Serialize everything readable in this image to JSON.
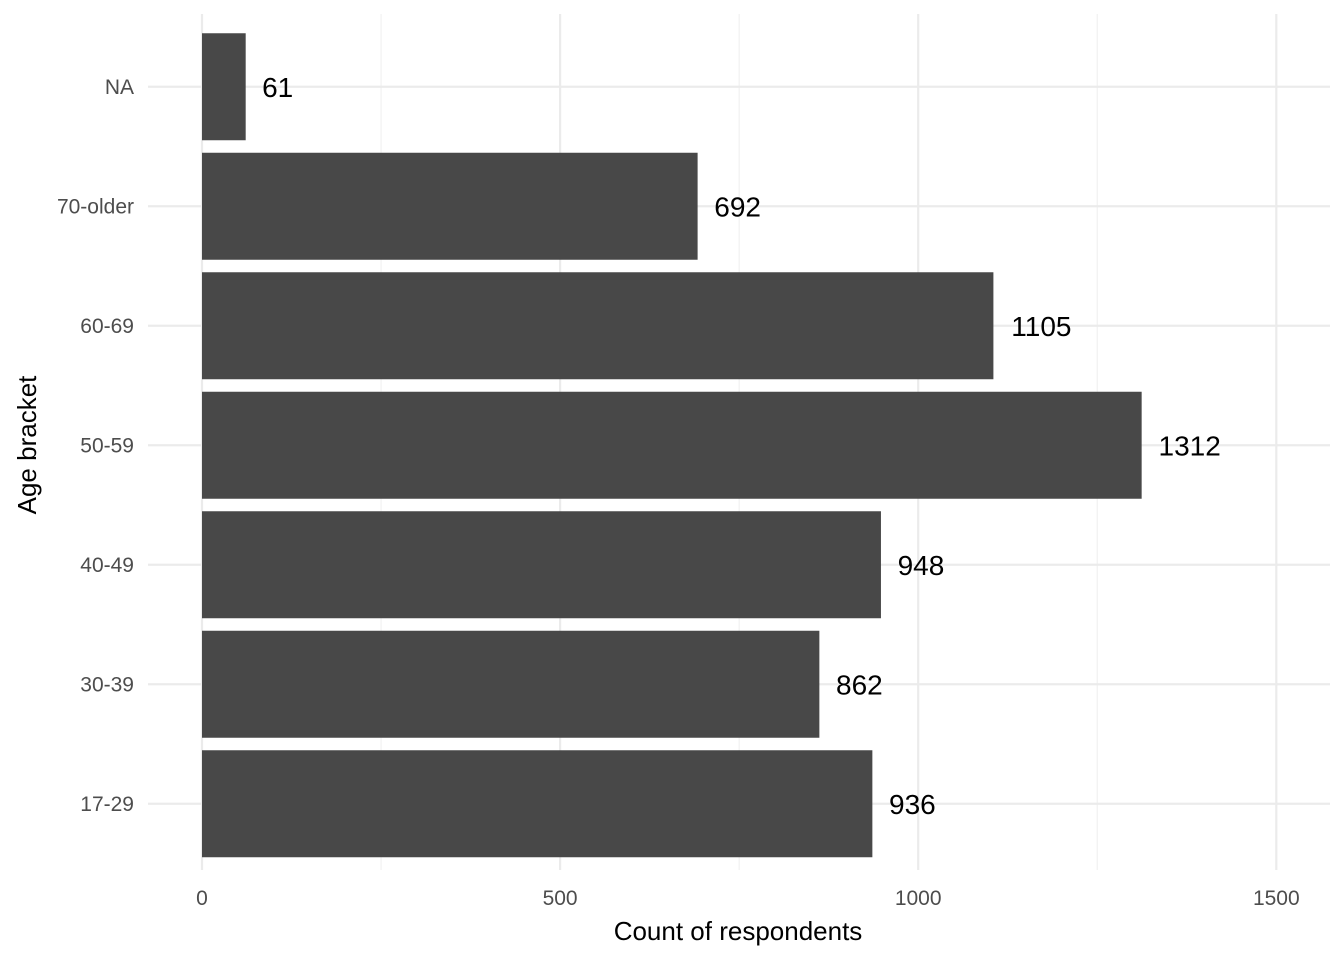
{
  "chart_data": {
    "type": "bar",
    "orientation": "horizontal",
    "categories": [
      "17-29",
      "30-39",
      "40-49",
      "50-59",
      "60-69",
      "70-older",
      "NA"
    ],
    "values": [
      936,
      862,
      948,
      1312,
      1105,
      692,
      61
    ],
    "data_labels": [
      "936",
      "862",
      "948",
      "1312",
      "1105",
      "692",
      "61"
    ],
    "xlabel": "Count of respondents",
    "ylabel": "Age bracket",
    "xlim": [
      0,
      1570
    ],
    "x_ticks": [
      0,
      500,
      1000,
      1500
    ],
    "x_tick_labels": [
      "0",
      "500",
      "1000",
      "1500"
    ],
    "x_minor_ticks": [
      250,
      750,
      1250
    ],
    "grid": true,
    "legend": "none",
    "bar_color": "#484848"
  }
}
